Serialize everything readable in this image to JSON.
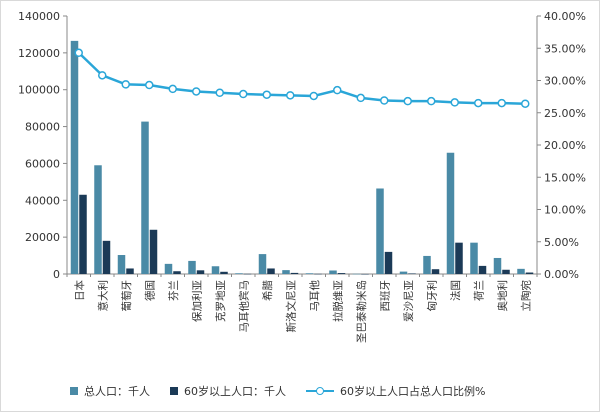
{
  "chart_data": {
    "type": "bar",
    "categories": [
      "日本",
      "意大利",
      "葡萄牙",
      "德国",
      "芬兰",
      "保加利亚",
      "克罗地亚",
      "马耳他宾马",
      "希腊",
      "斯洛文尼亚",
      "马耳他",
      "拉脱维亚",
      "圣巴泰勒米岛",
      "西班牙",
      "爱沙尼亚",
      "匈牙利",
      "法国",
      "荷兰",
      "奥地利",
      "立陶宛"
    ],
    "series": [
      {
        "name": "总人口：千人",
        "axis": "left",
        "type": "bar",
        "values": [
          126500,
          59000,
          10300,
          82700,
          5500,
          7100,
          4200,
          400,
          10800,
          2100,
          400,
          1900,
          100,
          46400,
          1300,
          9800,
          65800,
          17000,
          8700,
          2800
        ]
      },
      {
        "name": "60岁以上人口：千人",
        "axis": "left",
        "type": "bar",
        "values": [
          43000,
          18000,
          3000,
          24000,
          1500,
          2000,
          1200,
          100,
          3000,
          600,
          100,
          500,
          30,
          12000,
          300,
          2600,
          17000,
          4400,
          2300,
          800
        ]
      },
      {
        "name": "60岁以上人口占总人口比例%",
        "axis": "right",
        "type": "line",
        "values": [
          34.3,
          30.8,
          29.4,
          29.3,
          28.7,
          28.3,
          28.1,
          27.9,
          27.8,
          27.7,
          27.6,
          28.5,
          27.3,
          26.9,
          26.8,
          26.8,
          26.6,
          26.5,
          26.5,
          26.4
        ]
      }
    ],
    "y_left": {
      "min": 0,
      "max": 140000,
      "step": 20000,
      "ticks": [
        "0",
        "20000",
        "40000",
        "60000",
        "80000",
        "100000",
        "120000",
        "140000"
      ]
    },
    "y_right": {
      "min": 0,
      "max": 40,
      "step": 5,
      "ticks": [
        "0.00%",
        "5.00%",
        "10.00%",
        "15.00%",
        "20.00%",
        "25.00%",
        "30.00%",
        "35.00%",
        "40.00%"
      ]
    },
    "grid": false,
    "legend_position": "bottom",
    "title": "",
    "colors": {
      "total": "#4a8aa6",
      "aged": "#1b3a57",
      "ratio": "#2aa6d8",
      "axis": "#888888",
      "text": "#333333"
    }
  }
}
